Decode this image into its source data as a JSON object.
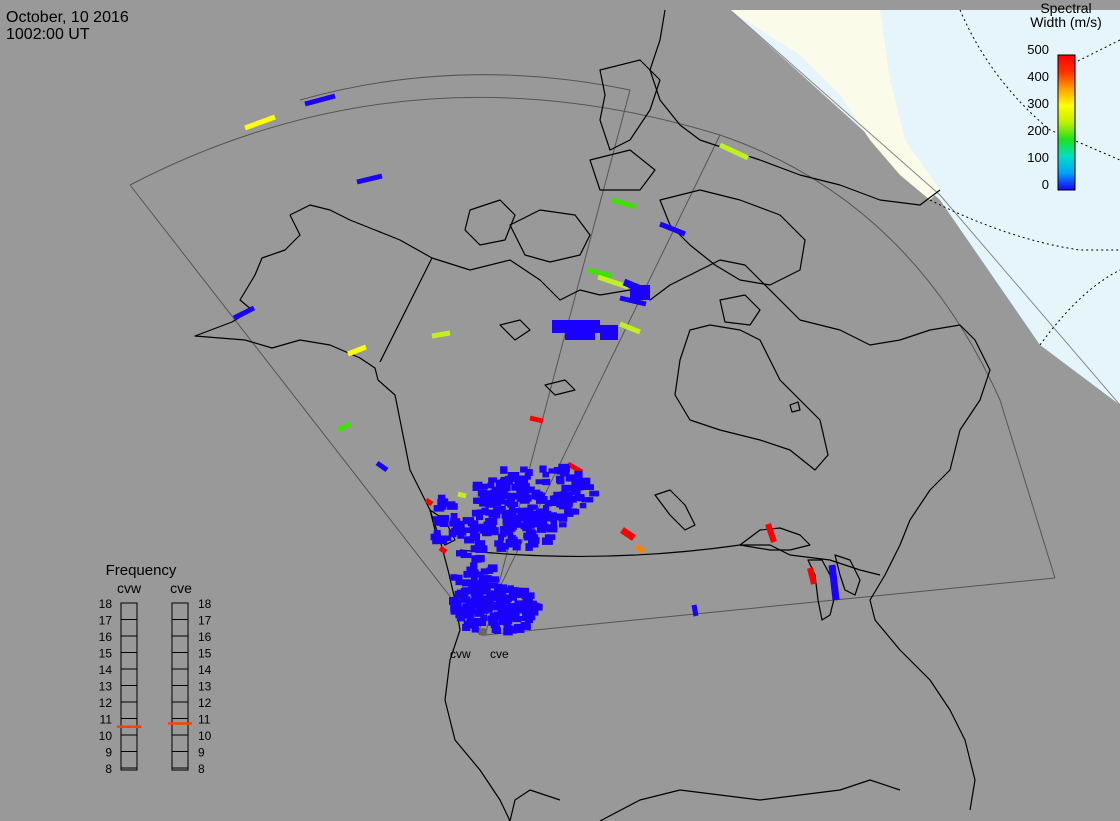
{
  "header": {
    "date": "October, 10 2016",
    "time": "1002:00 UT"
  },
  "legend": {
    "title_line1": "Spectral",
    "title_line2": "Width (m/s)",
    "ticks": [
      "500",
      "400",
      "300",
      "200",
      "100",
      "0"
    ],
    "scale_min": 0,
    "scale_max": 500,
    "colors": [
      "#1a00ff",
      "#00a0ff",
      "#00e0c0",
      "#20e020",
      "#c0f000",
      "#ffff00",
      "#ffa000",
      "#ff3000",
      "#ff0000"
    ]
  },
  "frequency": {
    "title": "Frequency",
    "radars": [
      {
        "label": "cvw",
        "freq_mhz": 10.5
      },
      {
        "label": "cve",
        "freq_mhz": 10.7
      }
    ],
    "ticks": [
      "18",
      "17",
      "16",
      "15",
      "14",
      "13",
      "12",
      "11",
      "10",
      "9",
      "8"
    ],
    "min": 8,
    "max": 18,
    "marker_color": "#ff4000"
  },
  "sites": {
    "west_label": "cvw",
    "east_label": "cve"
  },
  "colors": {
    "background": "#999999",
    "land_line": "#000000",
    "fov_line": "#555555",
    "night_region": "#e6f4fb",
    "terminator_region": "#fbfbea",
    "low_width": "#1a00ff"
  }
}
